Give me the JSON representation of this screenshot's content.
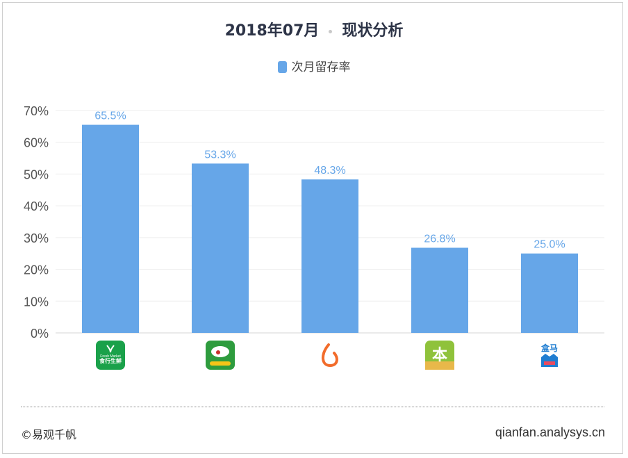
{
  "header": {
    "date": "2018年07月",
    "title": "现状分析"
  },
  "chart_data": {
    "type": "bar",
    "title": "2018年07月 · 现状分析",
    "legend": [
      "次月留存率"
    ],
    "legend_position": "top-center",
    "categories": [
      "Fresh Market 食行生鲜",
      "到家美食",
      "橙色水滴应用",
      "本来生活",
      "盒马"
    ],
    "series": [
      {
        "name": "次月留存率",
        "values": [
          65.5,
          53.3,
          48.3,
          26.8,
          25.0
        ],
        "color": "#66a6e8"
      }
    ],
    "value_labels": [
      "65.5%",
      "53.3%",
      "48.3%",
      "26.8%",
      "25.0%"
    ],
    "y_ticks": [
      "0%",
      "10%",
      "20%",
      "30%",
      "40%",
      "50%",
      "60%",
      "70%"
    ],
    "ylim": [
      0,
      70
    ],
    "grid": true,
    "xlabel": "",
    "ylabel": ""
  },
  "icons": [
    {
      "name": "shixian-app-icon",
      "text": "食行生鲜",
      "caption": "Fresh Market",
      "color": "#1aa14a"
    },
    {
      "name": "daojia-app-icon",
      "text": "",
      "color": "#2e9c3e"
    },
    {
      "name": "drop-app-icon",
      "text": "",
      "color": "#f26c2b"
    },
    {
      "name": "benlai-app-icon",
      "text": "本",
      "color": "#8fc23b"
    },
    {
      "name": "hema-app-icon",
      "text": "盒马",
      "color": "#1f7dd1"
    }
  ],
  "footer": {
    "copyright": "©易观千帆",
    "website": "qianfan.analysys.cn"
  }
}
